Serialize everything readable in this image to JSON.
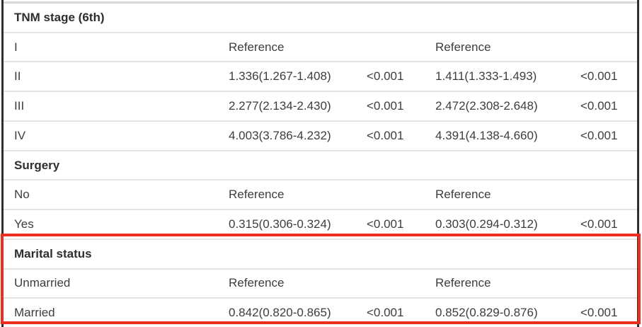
{
  "table": {
    "kind": "cox-regression-results",
    "highlight_color": "#ed2d1f",
    "text_color": "#3d3d3d",
    "separator_color": "#e4e4e4",
    "side_border_color": "#2f2f2f",
    "top_rule_color": "#d9d9d9",
    "columns": [
      "variable",
      "hr_95ci_model1",
      "p_model1",
      "hr_95ci_model2",
      "p_model2"
    ],
    "sections": [
      {
        "header": "TNM stage (6th)",
        "highlighted": false,
        "rows": [
          {
            "label": "I",
            "hr1": "Reference",
            "p1": "",
            "hr2": "Reference",
            "p2": ""
          },
          {
            "label": "II",
            "hr1": "1.336(1.267-1.408)",
            "p1": "<0.001",
            "hr2": "1.411(1.333-1.493)",
            "p2": "<0.001"
          },
          {
            "label": "III",
            "hr1": "2.277(2.134-2.430)",
            "p1": "<0.001",
            "hr2": "2.472(2.308-2.648)",
            "p2": "<0.001"
          },
          {
            "label": "IV",
            "hr1": "4.003(3.786-4.232)",
            "p1": "<0.001",
            "hr2": "4.391(4.138-4.660)",
            "p2": "<0.001"
          }
        ]
      },
      {
        "header": "Surgery",
        "highlighted": false,
        "rows": [
          {
            "label": "No",
            "hr1": "Reference",
            "p1": "",
            "hr2": "Reference",
            "p2": ""
          },
          {
            "label": "Yes",
            "hr1": "0.315(0.306-0.324)",
            "p1": "<0.001",
            "hr2": "0.303(0.294-0.312)",
            "p2": "<0.001"
          }
        ]
      },
      {
        "header": "Marital status",
        "highlighted": true,
        "rows": [
          {
            "label": "Unmarried",
            "hr1": "Reference",
            "p1": "",
            "hr2": "Reference",
            "p2": ""
          },
          {
            "label": "Married",
            "hr1": "0.842(0.820-0.865)",
            "p1": "<0.001",
            "hr2": "0.852(0.829-0.876)",
            "p2": "<0.001"
          }
        ]
      }
    ]
  }
}
